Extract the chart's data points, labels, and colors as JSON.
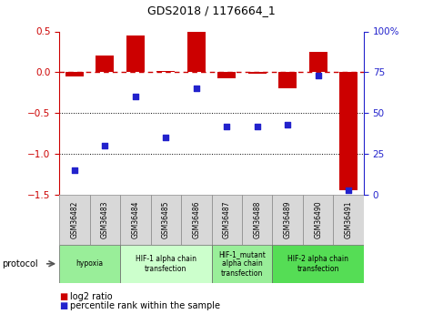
{
  "title": "GDS2018 / 1176664_1",
  "samples": [
    "GSM36482",
    "GSM36483",
    "GSM36484",
    "GSM36485",
    "GSM36486",
    "GSM36487",
    "GSM36488",
    "GSM36489",
    "GSM36490",
    "GSM36491"
  ],
  "log2_ratio": [
    -0.05,
    0.2,
    0.45,
    0.02,
    0.5,
    -0.07,
    -0.02,
    -0.2,
    0.25,
    -1.45
  ],
  "percentile_rank": [
    15,
    30,
    60,
    35,
    65,
    42,
    42,
    43,
    73,
    3
  ],
  "bar_color": "#cc0000",
  "dot_color": "#2222cc",
  "ylim_left": [
    -1.5,
    0.5
  ],
  "ylim_right": [
    0,
    100
  ],
  "right_ticks": [
    0,
    25,
    50,
    75,
    100
  ],
  "right_tick_labels": [
    "0",
    "25",
    "50",
    "75",
    "100%"
  ],
  "left_ticks": [
    -1.5,
    -1.0,
    -0.5,
    0.0,
    0.5
  ],
  "hline_zero_color": "#cc0000",
  "hline_dotted_color": "#000000",
  "protocols": [
    {
      "label": "hypoxia",
      "start": 0,
      "end": 2,
      "color": "#99ee99"
    },
    {
      "label": "HIF-1 alpha chain\ntransfection",
      "start": 2,
      "end": 5,
      "color": "#ccffcc"
    },
    {
      "label": "HIF-1_mutant\nalpha chain\ntransfection",
      "start": 5,
      "end": 7,
      "color": "#99ee99"
    },
    {
      "label": "HIF-2 alpha chain\ntransfection",
      "start": 7,
      "end": 10,
      "color": "#55dd55"
    }
  ],
  "legend_items": [
    {
      "label": "log2 ratio",
      "color": "#cc0000"
    },
    {
      "label": "percentile rank within the sample",
      "color": "#2222cc"
    }
  ],
  "protocol_label": "protocol",
  "sample_box_color": "#d8d8d8",
  "background_color": "#ffffff"
}
